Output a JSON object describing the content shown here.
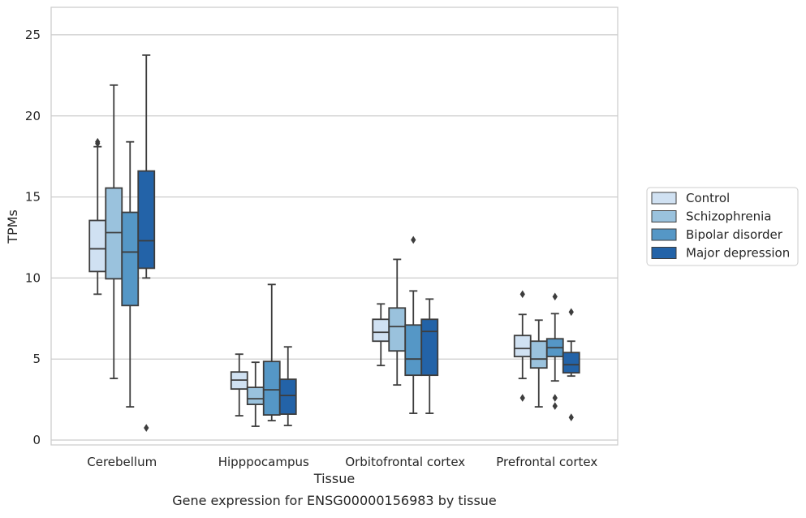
{
  "chart_data": {
    "type": "box",
    "caption": "Gene expression for ENSG00000156983 by tissue",
    "xlabel": "Tissue",
    "ylabel": "TPMs",
    "ylim": [
      -0.3,
      26.7
    ],
    "yticks": [
      0,
      5,
      10,
      15,
      20,
      25
    ],
    "grid": "horizontal",
    "legend_position": "right",
    "categories": [
      "Cerebellum",
      "Hipppocampus",
      "Orbitofrontal cortex",
      "Prefrontal cortex"
    ],
    "series": [
      {
        "name": "Control",
        "color": "#d0e1f2",
        "boxes": [
          {
            "whislo": 9.0,
            "q1": 10.4,
            "med": 11.8,
            "q3": 13.55,
            "whishi": 18.1,
            "fliers": [
              18.4,
              18.3
            ]
          },
          {
            "whislo": 1.5,
            "q1": 3.15,
            "med": 3.7,
            "q3": 4.2,
            "whishi": 5.3,
            "fliers": []
          },
          {
            "whislo": 4.6,
            "q1": 6.1,
            "med": 6.65,
            "q3": 7.45,
            "whishi": 8.4,
            "fliers": []
          },
          {
            "whislo": 3.8,
            "q1": 5.15,
            "med": 5.65,
            "q3": 6.45,
            "whishi": 7.75,
            "fliers": [
              9.0,
              2.6
            ]
          }
        ]
      },
      {
        "name": "Schizophrenia",
        "color": "#9ac2dd",
        "boxes": [
          {
            "whislo": 3.8,
            "q1": 9.95,
            "med": 12.8,
            "q3": 15.55,
            "whishi": 21.9,
            "fliers": []
          },
          {
            "whislo": 0.85,
            "q1": 2.2,
            "med": 2.55,
            "q3": 3.25,
            "whishi": 4.8,
            "fliers": []
          },
          {
            "whislo": 3.4,
            "q1": 5.5,
            "med": 7.0,
            "q3": 8.15,
            "whishi": 11.15,
            "fliers": []
          },
          {
            "whislo": 2.05,
            "q1": 4.45,
            "med": 5.0,
            "q3": 6.1,
            "whishi": 7.4,
            "fliers": []
          }
        ]
      },
      {
        "name": "Bipolar disorder",
        "color": "#5597c6",
        "boxes": [
          {
            "whislo": 2.05,
            "q1": 8.3,
            "med": 11.6,
            "q3": 14.05,
            "whishi": 18.4,
            "fliers": []
          },
          {
            "whislo": 1.2,
            "q1": 1.55,
            "med": 3.1,
            "q3": 4.85,
            "whishi": 9.6,
            "fliers": []
          },
          {
            "whislo": 1.65,
            "q1": 4.0,
            "med": 5.0,
            "q3": 7.1,
            "whishi": 9.2,
            "fliers": [
              12.35
            ]
          },
          {
            "whislo": 3.65,
            "q1": 5.15,
            "med": 5.7,
            "q3": 6.25,
            "whishi": 7.8,
            "fliers": [
              8.85,
              2.6,
              2.1
            ]
          }
        ]
      },
      {
        "name": "Major depression",
        "color": "#2363a8",
        "boxes": [
          {
            "whislo": 10.0,
            "q1": 10.6,
            "med": 12.3,
            "q3": 16.6,
            "whishi": 23.75,
            "fliers": [
              0.75
            ]
          },
          {
            "whislo": 0.9,
            "q1": 1.6,
            "med": 2.75,
            "q3": 3.75,
            "whishi": 5.75,
            "fliers": []
          },
          {
            "whislo": 1.65,
            "q1": 4.0,
            "med": 6.7,
            "q3": 7.45,
            "whishi": 8.7,
            "fliers": []
          },
          {
            "whislo": 3.95,
            "q1": 4.15,
            "med": 4.65,
            "q3": 5.4,
            "whishi": 6.1,
            "fliers": [
              7.9,
              1.4
            ]
          }
        ]
      }
    ]
  }
}
